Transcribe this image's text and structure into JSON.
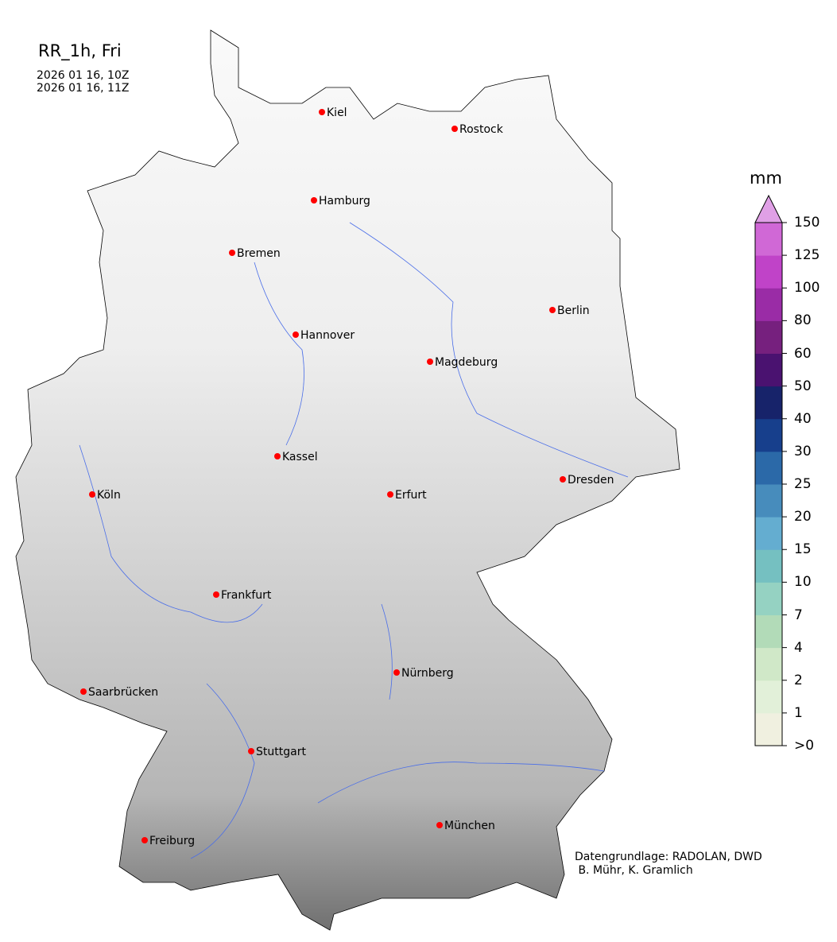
{
  "title": "RR_1h, Fri",
  "time_start": "2026 01 16, 10Z",
  "time_end": "2026 01 16, 11Z",
  "credit": "Datengrundlage: RADOLAN, DWD\n B. Mühr, K. Gramlich",
  "colorbar": {
    "unit": "mm",
    "ticks": [
      ">0",
      "1",
      "2",
      "4",
      "7",
      "10",
      "15",
      "20",
      "25",
      "30",
      "40",
      "50",
      "60",
      "80",
      "100",
      "125",
      "150"
    ],
    "colors": [
      "#f0f0e0",
      "#e2f0d9",
      "#d0e8c8",
      "#b2dbb8",
      "#95d2c2",
      "#75c0c1",
      "#64add0",
      "#478cbc",
      "#2b69a8",
      "#173f8c",
      "#17236a",
      "#4a1270",
      "#76207e",
      "#9a2ca6",
      "#c043c8",
      "#d068d6"
    ],
    "extend_color": "#e0a0e6"
  },
  "city_marker_color": "#ff0000",
  "cities": [
    "Kiel",
    "Rostock",
    "Hamburg",
    "Bremen",
    "Berlin",
    "Hannover",
    "Magdeburg",
    "Kassel",
    "Köln",
    "Erfurt",
    "Dresden",
    "Frankfurt",
    "Saarbrücken",
    "Nürnberg",
    "Stuttgart",
    "München",
    "Freiburg"
  ]
}
